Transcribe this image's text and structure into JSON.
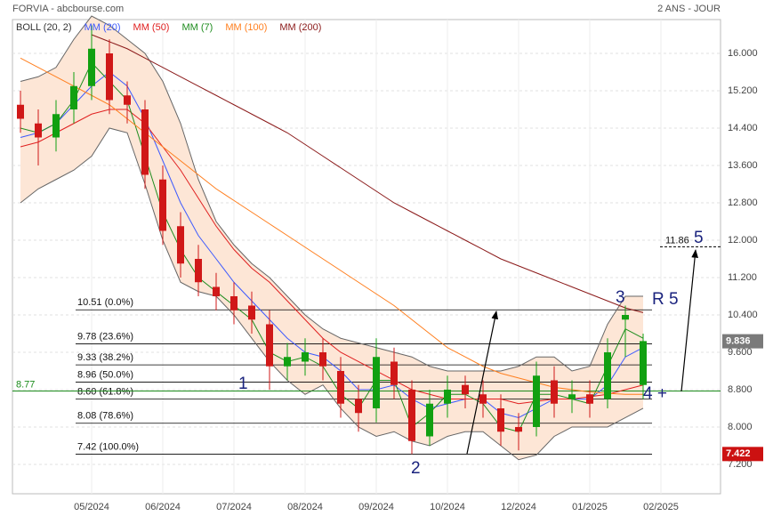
{
  "header": {
    "title": "FORVIA - abcbourse.com",
    "period": "2 ANS - JOUR"
  },
  "chart_data": {
    "type": "candlestick",
    "categories": [
      null,
      null,
      null,
      null,
      "05/2024",
      null,
      null,
      null,
      "06/2024",
      null,
      null,
      null,
      "07/2024",
      null,
      null,
      null,
      "08/2024",
      null,
      null,
      null,
      "09/2024",
      null,
      null,
      null,
      "10/2024",
      null,
      null,
      null,
      "12/2024",
      null,
      null,
      null,
      "01/2025",
      null,
      null,
      null,
      "02/2025"
    ],
    "open": [
      14.9,
      14.5,
      14.2,
      14.8,
      15.3,
      16.0,
      15.1,
      14.8,
      13.3,
      12.3,
      11.6,
      11.0,
      10.8,
      10.6,
      10.2,
      9.3,
      9.4,
      9.6,
      9.2,
      8.6,
      8.4,
      9.4,
      8.8,
      7.8,
      8.5,
      8.9,
      8.7,
      8.4,
      8.0,
      8.0,
      9.0,
      8.6,
      8.7,
      8.6,
      10.3,
      8.9,
      null
    ],
    "high": [
      15.2,
      14.8,
      15.0,
      15.6,
      16.6,
      16.3,
      15.4,
      15.0,
      13.6,
      12.6,
      11.9,
      11.3,
      11.1,
      10.9,
      10.5,
      9.8,
      9.9,
      9.9,
      9.5,
      8.9,
      9.9,
      9.7,
      9.0,
      8.8,
      9.1,
      9.1,
      9.0,
      8.7,
      8.3,
      9.4,
      9.3,
      9.0,
      9.0,
      9.9,
      10.6,
      10.0,
      null
    ],
    "low": [
      14.3,
      13.6,
      13.9,
      14.5,
      15.0,
      14.7,
      14.5,
      13.1,
      11.9,
      11.2,
      10.8,
      10.5,
      10.2,
      10.0,
      8.8,
      9.0,
      9.1,
      9.0,
      8.2,
      7.9,
      8.1,
      8.6,
      7.42,
      7.6,
      8.2,
      8.4,
      8.2,
      7.6,
      7.5,
      7.8,
      8.2,
      8.3,
      8.2,
      8.4,
      9.5,
      8.6,
      null
    ],
    "close": [
      14.6,
      14.2,
      14.7,
      15.3,
      16.1,
      15.0,
      14.9,
      13.4,
      12.2,
      11.5,
      11.1,
      10.8,
      10.5,
      10.3,
      9.3,
      9.5,
      9.6,
      9.3,
      8.5,
      8.3,
      9.5,
      8.9,
      7.7,
      8.5,
      8.8,
      8.7,
      8.5,
      7.9,
      7.9,
      9.1,
      8.5,
      8.7,
      8.5,
      9.6,
      10.4,
      9.84,
      null
    ],
    "up_color": "#11a011",
    "down_color": "#d01818",
    "bands": {
      "name": "BOLL (20, 2)",
      "color": "#666666",
      "fill": "#fde6d6",
      "upper": [
        15.4,
        15.5,
        15.7,
        16.3,
        16.8,
        16.6,
        16.3,
        16.0,
        15.4,
        14.5,
        13.3,
        12.4,
        11.9,
        11.5,
        11.2,
        10.8,
        10.4,
        10.1,
        9.9,
        9.8,
        9.7,
        9.6,
        9.5,
        9.3,
        9.2,
        9.2,
        9.2,
        9.2,
        9.3,
        9.5,
        9.5,
        9.2,
        9.3,
        10.2,
        10.8,
        10.8,
        null
      ],
      "lower": [
        12.8,
        13.1,
        13.3,
        13.5,
        13.8,
        14.4,
        14.3,
        13.2,
        12.0,
        11.1,
        10.9,
        10.8,
        10.4,
        9.9,
        9.4,
        9.0,
        8.7,
        8.9,
        8.4,
        8.0,
        7.8,
        7.9,
        7.7,
        7.6,
        7.8,
        7.9,
        7.9,
        7.6,
        7.3,
        7.4,
        7.8,
        8.0,
        8.0,
        8.0,
        8.2,
        8.4,
        null
      ]
    },
    "series": [
      {
        "name": "MM (20)",
        "color": "#3d5afe",
        "values": [
          14.2,
          14.3,
          14.5,
          14.9,
          15.3,
          15.6,
          15.3,
          14.6,
          13.7,
          12.8,
          12.1,
          11.6,
          11.1,
          10.7,
          10.3,
          9.9,
          9.6,
          9.5,
          9.2,
          8.8,
          8.8,
          8.9,
          8.6,
          8.4,
          8.5,
          8.6,
          8.6,
          8.3,
          8.2,
          8.4,
          8.6,
          8.6,
          8.6,
          8.9,
          9.5,
          9.7,
          null
        ]
      },
      {
        "name": "MM (50)",
        "color": "#e02020",
        "values": [
          14.0,
          14.1,
          14.3,
          14.5,
          14.7,
          14.8,
          14.8,
          14.5,
          14.0,
          13.5,
          12.9,
          12.3,
          11.8,
          11.4,
          11.1,
          10.7,
          10.3,
          9.9,
          9.6,
          9.4,
          9.2,
          9.0,
          8.8,
          8.7,
          8.6,
          8.6,
          8.6,
          8.6,
          8.5,
          8.55,
          8.6,
          8.6,
          8.65,
          8.7,
          8.8,
          8.9,
          null
        ]
      },
      {
        "name": "MM (7)",
        "color": "#1e8c1e",
        "values": [
          14.4,
          14.3,
          14.5,
          15.0,
          15.8,
          15.4,
          15.0,
          13.8,
          12.6,
          11.8,
          11.2,
          10.9,
          10.6,
          10.3,
          9.6,
          9.4,
          9.5,
          9.3,
          8.7,
          8.4,
          9.0,
          9.0,
          8.0,
          8.3,
          8.7,
          8.7,
          8.5,
          8.0,
          7.9,
          8.7,
          8.7,
          8.6,
          8.5,
          9.3,
          10.1,
          9.9,
          null
        ]
      },
      {
        "name": "MM (100)",
        "color": "#ff7f1f",
        "values": [
          15.9,
          15.7,
          15.5,
          15.3,
          15.1,
          14.9,
          14.6,
          14.3,
          14.0,
          13.7,
          13.4,
          13.1,
          12.85,
          12.6,
          12.35,
          12.1,
          11.85,
          11.6,
          11.35,
          11.1,
          10.85,
          10.6,
          10.3,
          10.0,
          9.7,
          9.5,
          9.3,
          9.15,
          9.05,
          8.95,
          8.85,
          8.8,
          8.75,
          8.72,
          8.7,
          8.7,
          null
        ]
      },
      {
        "name": "MM (200)",
        "color": "#8b1a1a",
        "values": [
          null,
          null,
          null,
          null,
          16.4,
          16.25,
          16.1,
          15.9,
          15.7,
          15.5,
          15.3,
          15.1,
          14.9,
          14.7,
          14.5,
          14.3,
          14.05,
          13.8,
          13.55,
          13.3,
          13.05,
          12.8,
          12.6,
          12.4,
          12.2,
          12.0,
          11.8,
          11.6,
          11.45,
          11.3,
          11.15,
          11.0,
          10.85,
          10.7,
          10.55,
          10.45,
          null
        ]
      }
    ],
    "ylim": [
      6.571,
      16.724
    ],
    "yticks": [
      {
        "value": 7.2,
        "label": "7.200"
      },
      {
        "value": 8,
        "label": "8.000"
      },
      {
        "value": 8.8,
        "label": "8.800"
      },
      {
        "value": 9.6,
        "label": "9.600"
      },
      {
        "value": 10.4,
        "label": "10.400"
      },
      {
        "value": 11.2,
        "label": "11.200"
      },
      {
        "value": 12,
        "label": "12.000"
      },
      {
        "value": 12.8,
        "label": "12.800"
      },
      {
        "value": 13.6,
        "label": "13.600"
      },
      {
        "value": 14.4,
        "label": "14.400"
      },
      {
        "value": 15.2,
        "label": "15.200"
      },
      {
        "value": 16,
        "label": "16.000"
      }
    ],
    "grid": true,
    "fib": [
      {
        "value": 10.51,
        "label": "10.51  (0.0%)"
      },
      {
        "value": 9.78,
        "label": "9.78  (23.6%)"
      },
      {
        "value": 9.33,
        "label": "9.33  (38.2%)"
      },
      {
        "value": 8.96,
        "label": "8.96  (50.0%)"
      },
      {
        "value": 8.6,
        "label": "8.60  (61.8%)"
      },
      {
        "value": 8.08,
        "label": "8.08  (78.6%)"
      },
      {
        "value": 7.42,
        "label": "7.42  (100.0%)"
      }
    ],
    "support": {
      "value": 8.77,
      "color": "#1a8a1a"
    },
    "target": {
      "value": 11.86
    },
    "price_tags": [
      {
        "value": 9.836,
        "color": "#7a7a7a"
      },
      {
        "value": 7.422,
        "color": "#cc1111"
      }
    ],
    "annotations": [
      "1",
      "2",
      "3",
      "R 5",
      "4 +",
      "5"
    ]
  }
}
